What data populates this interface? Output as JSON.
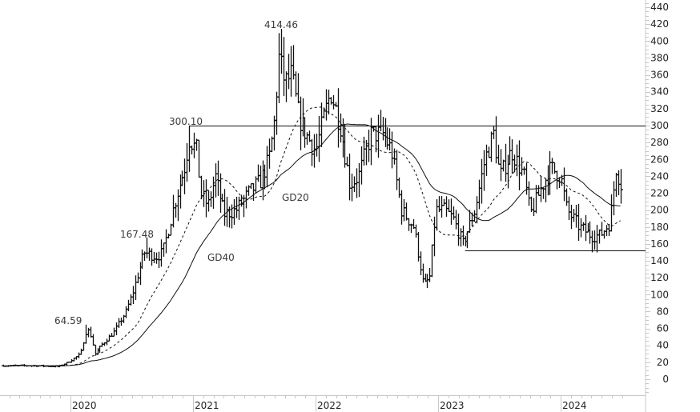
{
  "chart_data": {
    "type": "ohlc",
    "title": "",
    "xlabel": "",
    "ylabel": "",
    "ylim": [
      -20,
      440
    ],
    "y_ticks": [
      0,
      20,
      40,
      60,
      80,
      100,
      120,
      140,
      160,
      180,
      200,
      220,
      240,
      260,
      280,
      300,
      320,
      340,
      360,
      380,
      400,
      420,
      440
    ],
    "x_ticks": [
      "2020",
      "2021",
      "2022",
      "2023",
      "2024"
    ],
    "grid": false,
    "legend": "none",
    "price_path": [
      {
        "t": 2019.45,
        "v": 16
      },
      {
        "t": 2019.7,
        "v": 16
      },
      {
        "t": 2019.9,
        "v": 15
      },
      {
        "t": 2019.98,
        "v": 20
      },
      {
        "t": 2020.08,
        "v": 30
      },
      {
        "t": 2020.12,
        "v": 55
      },
      {
        "t": 2020.15,
        "v": 58
      },
      {
        "t": 2020.2,
        "v": 30
      },
      {
        "t": 2020.25,
        "v": 40
      },
      {
        "t": 2020.35,
        "v": 55
      },
      {
        "t": 2020.45,
        "v": 80
      },
      {
        "t": 2020.5,
        "v": 100
      },
      {
        "t": 2020.6,
        "v": 150
      },
      {
        "t": 2020.7,
        "v": 145
      },
      {
        "t": 2020.75,
        "v": 150
      },
      {
        "t": 2020.85,
        "v": 210
      },
      {
        "t": 2020.93,
        "v": 250
      },
      {
        "t": 2020.97,
        "v": 285
      },
      {
        "t": 2021.03,
        "v": 270
      },
      {
        "t": 2021.06,
        "v": 220
      },
      {
        "t": 2021.12,
        "v": 205
      },
      {
        "t": 2021.18,
        "v": 240
      },
      {
        "t": 2021.25,
        "v": 195
      },
      {
        "t": 2021.35,
        "v": 200
      },
      {
        "t": 2021.45,
        "v": 220
      },
      {
        "t": 2021.55,
        "v": 235
      },
      {
        "t": 2021.62,
        "v": 260
      },
      {
        "t": 2021.66,
        "v": 300
      },
      {
        "t": 2021.7,
        "v": 380
      },
      {
        "t": 2021.75,
        "v": 350
      },
      {
        "t": 2021.8,
        "v": 360
      },
      {
        "t": 2021.86,
        "v": 310
      },
      {
        "t": 2021.92,
        "v": 290
      },
      {
        "t": 2022.0,
        "v": 270
      },
      {
        "t": 2022.05,
        "v": 300
      },
      {
        "t": 2022.12,
        "v": 340
      },
      {
        "t": 2022.2,
        "v": 300
      },
      {
        "t": 2022.28,
        "v": 230
      },
      {
        "t": 2022.35,
        "v": 240
      },
      {
        "t": 2022.45,
        "v": 290
      },
      {
        "t": 2022.55,
        "v": 290
      },
      {
        "t": 2022.62,
        "v": 270
      },
      {
        "t": 2022.7,
        "v": 200
      },
      {
        "t": 2022.8,
        "v": 180
      },
      {
        "t": 2022.88,
        "v": 110
      },
      {
        "t": 2022.93,
        "v": 120
      },
      {
        "t": 2022.98,
        "v": 200
      },
      {
        "t": 2023.05,
        "v": 200
      },
      {
        "t": 2023.12,
        "v": 190
      },
      {
        "t": 2023.2,
        "v": 160
      },
      {
        "t": 2023.3,
        "v": 200
      },
      {
        "t": 2023.38,
        "v": 260
      },
      {
        "t": 2023.45,
        "v": 290
      },
      {
        "t": 2023.5,
        "v": 240
      },
      {
        "t": 2023.6,
        "v": 270
      },
      {
        "t": 2023.7,
        "v": 240
      },
      {
        "t": 2023.75,
        "v": 195
      },
      {
        "t": 2023.85,
        "v": 230
      },
      {
        "t": 2023.92,
        "v": 250
      },
      {
        "t": 2024.0,
        "v": 240
      },
      {
        "t": 2024.05,
        "v": 200
      },
      {
        "t": 2024.15,
        "v": 180
      },
      {
        "t": 2024.25,
        "v": 170
      },
      {
        "t": 2024.32,
        "v": 170
      },
      {
        "t": 2024.4,
        "v": 185
      },
      {
        "t": 2024.45,
        "v": 250
      },
      {
        "t": 2024.5,
        "v": 225
      }
    ],
    "moving_averages": [
      {
        "name": "GD20",
        "style": "dashed",
        "period": 20
      },
      {
        "name": "GD40",
        "style": "solid",
        "period": 40
      }
    ],
    "horizontal_lines": [
      {
        "y": 300,
        "x_start": 2020.97,
        "x_end": 2024.7
      },
      {
        "y": 152,
        "x_start": 2023.22,
        "x_end": 2024.7
      }
    ],
    "annotations": [
      {
        "text": "64.59",
        "x": 2020.12,
        "y": 64.59
      },
      {
        "text": "167.48",
        "x": 2020.62,
        "y": 167.48
      },
      {
        "text": "300.10",
        "x": 2020.97,
        "y": 300.1
      },
      {
        "text": "414.46",
        "x": 2021.72,
        "y": 414.46
      },
      {
        "text": "GD20",
        "label_for": "dashed moving average"
      },
      {
        "text": "GD40",
        "label_for": "solid moving average"
      }
    ]
  },
  "labels": {
    "peak_2020": "64.59",
    "peak_2020b": "167.48",
    "peak_2021": "300.10",
    "peak_2021b": "414.46",
    "ma_short": "GD20",
    "ma_long": "GD40"
  }
}
